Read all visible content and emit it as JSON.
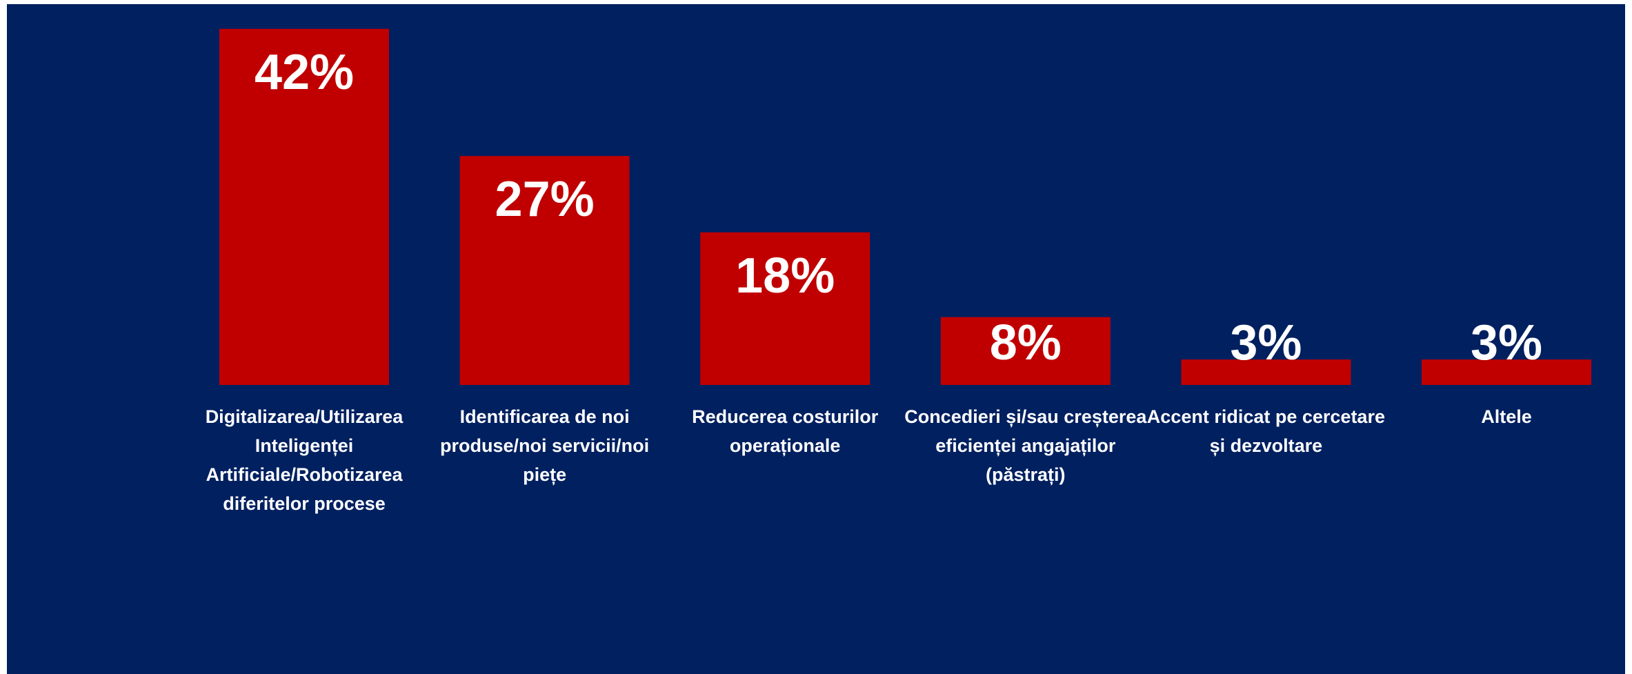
{
  "chart_data": {
    "type": "bar",
    "categories": [
      "Digitalizarea/Utilizarea Inteligenței Artificiale/Robotizarea diferitelor procese",
      "Identificarea de noi produse/noi servicii/noi piețe",
      "Reducerea costurilor operaționale",
      "Concedieri și/sau creșterea eficienței angajaților (păstrați)",
      "Accent ridicat pe cercetare și dezvoltare",
      "Altele"
    ],
    "values": [
      42,
      27,
      18,
      8,
      3,
      3
    ],
    "value_labels": [
      "42%",
      "27%",
      "18%",
      "8%",
      "3%",
      "3%"
    ],
    "color": "#c00000"
  }
}
